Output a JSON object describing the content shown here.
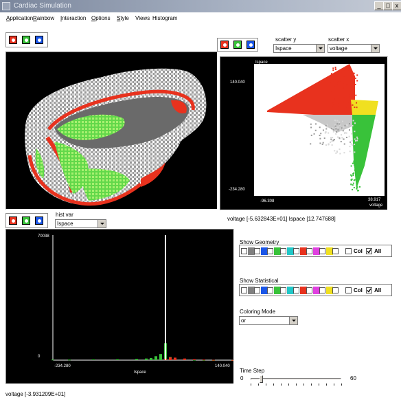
{
  "window": {
    "title": "Cardiac Simulation",
    "min": "_",
    "max": "□",
    "close": "x"
  },
  "menu": [
    {
      "label": "Application",
      "accel_index": 0
    },
    {
      "label": "Rainbow",
      "accel_index": 0
    },
    {
      "label": "Interaction",
      "accel_index": 0
    },
    {
      "label": "Options",
      "accel_index": 0
    },
    {
      "label": "Style",
      "accel_index": 0
    },
    {
      "label": "Views",
      "accel_index": -1
    },
    {
      "label": "Histogram",
      "accel_index": -1
    }
  ],
  "toggle_colors": [
    "#e8321e",
    "#39c23a",
    "#1a56e8"
  ],
  "scatter": {
    "y_label": "scatter y",
    "x_label": "scatter x",
    "y_value": "Ispace",
    "x_value": "voltage",
    "plot_y_label": "Ispace",
    "plot_x_label": "voltage",
    "y_max": "140.040",
    "y_min": "-234.280",
    "x_min": "-96.308",
    "x_max": "38.917",
    "readout": "voltage  [-5.632843E+01]  Ispace  [12.747688]"
  },
  "histogram": {
    "var_label": "hist var",
    "var_value": "Ispace",
    "y_max": "70038",
    "y_min": "0",
    "x_min": "-234.280",
    "x_max": "140.040",
    "x_label": "Ispace"
  },
  "geometry": {
    "label": "Show Geometry",
    "col_label": "Col",
    "all_label": "All",
    "all_checked": true,
    "swatches": [
      "#808080",
      "#1a56e8",
      "#39c23a",
      "#20c8c8",
      "#e8321e",
      "#e040e0",
      "#f0e020",
      "#ffffff"
    ]
  },
  "statistical": {
    "label": "Show Statistical",
    "col_label": "Col",
    "all_label": "All",
    "all_checked": true,
    "swatches": [
      "#808080",
      "#1a56e8",
      "#39c23a",
      "#20c8c8",
      "#e8321e",
      "#e040e0",
      "#f0e020",
      "#ffffff"
    ]
  },
  "coloring": {
    "label": "Coloring Mode",
    "value": "or"
  },
  "timestep": {
    "label": "Time Step",
    "min": "0",
    "max": "60",
    "value": 6
  },
  "status": "voltage  [-3.931209E+01]",
  "chart_data": [
    {
      "type": "scatter",
      "xlabel": "voltage",
      "ylabel": "Ispace",
      "xlim": [
        -96.308,
        38.917
      ],
      "ylim": [
        -234.28,
        140.04
      ]
    },
    {
      "type": "bar",
      "xlabel": "Ispace",
      "xlim": [
        -234.28,
        140.04
      ],
      "ylim": [
        0,
        70038
      ],
      "x": [
        -234.28,
        -200,
        -150,
        -100,
        -60,
        -40,
        -30,
        -20,
        -10,
        0,
        10,
        20,
        40,
        60,
        80,
        100,
        140.04
      ],
      "series": [
        {
          "name": "green",
          "color": "#39c23a",
          "values": [
            300,
            300,
            400,
            500,
            700,
            900,
            1200,
            2200,
            3400,
            9500,
            1800,
            1200,
            400,
            150,
            80,
            40,
            20
          ]
        },
        {
          "name": "red",
          "color": "#e8321e",
          "values": [
            0,
            0,
            0,
            0,
            0,
            0,
            0,
            0,
            0,
            800,
            1600,
            1400,
            900,
            500,
            300,
            150,
            80
          ]
        },
        {
          "name": "white",
          "color": "#ffffff",
          "values": [
            0,
            0,
            0,
            0,
            0,
            0,
            0,
            0,
            0,
            70038,
            0,
            0,
            0,
            0,
            0,
            0,
            0
          ]
        }
      ]
    }
  ]
}
